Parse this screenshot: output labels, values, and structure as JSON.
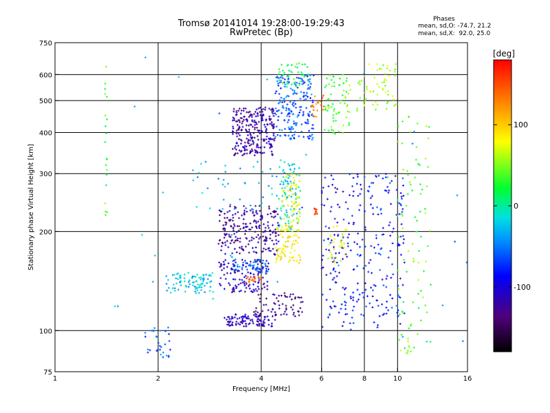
{
  "chart_data": {
    "type": "scatter",
    "title": "Tromsø 20141014 19:28:00-19:29:43",
    "subtitle": "RwPretec (Bp)",
    "xlabel": "Frequency [MHz]",
    "ylabel": "Stationary phase Virtual Height [km]",
    "x_scale": "log",
    "y_scale": "log",
    "xlim": [
      1,
      16
    ],
    "ylim": [
      75,
      750
    ],
    "x_ticks": [
      "1",
      "2",
      "4",
      "6",
      "8",
      "10",
      "16"
    ],
    "x_tick_values": [
      1,
      2,
      4,
      6,
      8,
      10,
      16
    ],
    "y_ticks": [
      "75",
      "100",
      "200",
      "300",
      "400",
      "500",
      "600",
      "750"
    ],
    "y_tick_values": [
      75,
      100,
      200,
      300,
      400,
      500,
      600,
      750
    ],
    "grid": true,
    "colorbar": {
      "label": "[deg]",
      "range": [
        -180,
        180
      ],
      "ticks": [
        "100",
        "0",
        "-100"
      ],
      "tick_values": [
        100,
        0,
        -100
      ]
    },
    "stats": {
      "heading": "Phases",
      "line_O": "mean, sd,O: -74.7, 21.2",
      "line_X": "mean, sd,X:  92.0, 25.0"
    },
    "clusters": [
      {
        "x": [
          3.3,
          4.4
        ],
        "y": [
          340,
          480
        ],
        "phase": -120,
        "n": 260
      },
      {
        "x": [
          4.4,
          5.7
        ],
        "y": [
          380,
          600
        ],
        "phase": -60,
        "n": 200
      },
      {
        "x": [
          4.5,
          5.5
        ],
        "y": [
          550,
          650
        ],
        "phase": 20,
        "n": 40
      },
      {
        "x": [
          4.5,
          5.2
        ],
        "y": [
          200,
          330
        ],
        "phase": -20,
        "n": 90
      },
      {
        "x": [
          4.6,
          5.2
        ],
        "y": [
          200,
          300
        ],
        "phase": 75,
        "n": 70
      },
      {
        "x": [
          4.4,
          5.2
        ],
        "y": [
          160,
          210
        ],
        "phase": 85,
        "n": 80
      },
      {
        "x": [
          3.0,
          4.5
        ],
        "y": [
          170,
          240
        ],
        "phase": -125,
        "n": 220
      },
      {
        "x": [
          3.0,
          4.2
        ],
        "y": [
          130,
          165
        ],
        "phase": -110,
        "n": 130
      },
      {
        "x": [
          3.3,
          4.2
        ],
        "y": [
          150,
          165
        ],
        "phase": -55,
        "n": 50
      },
      {
        "x": [
          3.6,
          4.0
        ],
        "y": [
          140,
          146
        ],
        "phase": 140,
        "n": 18
      },
      {
        "x": [
          2.1,
          2.9
        ],
        "y": [
          130,
          150
        ],
        "phase": -25,
        "n": 90
      },
      {
        "x": [
          3.1,
          4.4
        ],
        "y": [
          103,
          112
        ],
        "phase": -115,
        "n": 100
      },
      {
        "x": [
          3.8,
          5.3
        ],
        "y": [
          110,
          130
        ],
        "phase": -130,
        "n": 70
      },
      {
        "x": [
          1.8,
          2.2
        ],
        "y": [
          83,
          103
        ],
        "phase": -60,
        "n": 30
      },
      {
        "x": [
          2.5,
          4.5
        ],
        "y": [
          230,
          330
        ],
        "phase": -30,
        "n": 40
      },
      {
        "x": [
          5.6,
          6.1
        ],
        "y": [
          440,
          520
        ],
        "phase": 140,
        "n": 20
      },
      {
        "x": [
          5.7,
          5.85
        ],
        "y": [
          225,
          235
        ],
        "phase": 150,
        "n": 12
      },
      {
        "x": [
          6.1,
          7.3
        ],
        "y": [
          390,
          600
        ],
        "phase": 40,
        "n": 70
      },
      {
        "x": [
          6.0,
          7.5
        ],
        "y": [
          100,
          300
        ],
        "phase": -90,
        "n": 120
      },
      {
        "x": [
          6.2,
          7.1
        ],
        "y": [
          160,
          210
        ],
        "phase": 80,
        "n": 30
      },
      {
        "x": [
          7.6,
          10.0
        ],
        "y": [
          450,
          650
        ],
        "phase": 60,
        "n": 60
      },
      {
        "x": [
          7.6,
          10.5
        ],
        "y": [
          100,
          300
        ],
        "phase": -80,
        "n": 160
      },
      {
        "x": [
          10.0,
          12.5
        ],
        "y": [
          85,
          450
        ],
        "phase": 40,
        "n": 90
      },
      {
        "x": [
          1.4,
          1.42
        ],
        "y": [
          200,
          650
        ],
        "phase": 30,
        "n": 20
      },
      {
        "x": [
          1.2,
          16.0
        ],
        "y": [
          78,
          700
        ],
        "phase": -40,
        "n": 40
      }
    ]
  }
}
